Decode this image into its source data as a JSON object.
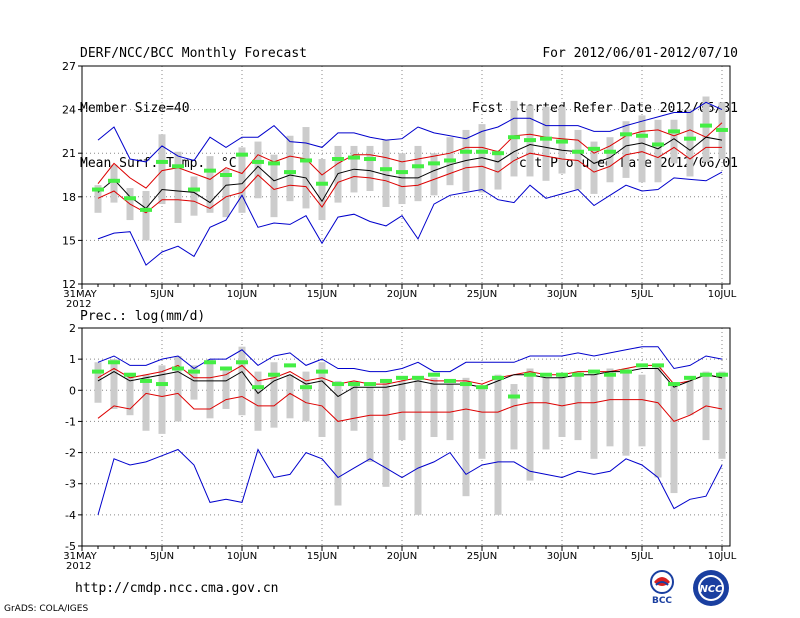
{
  "header": {
    "title": "DERF/NCC/BCC Monthly Forecast",
    "member": "Member Size=40",
    "variable": "Mean Surf. Temp.: °C",
    "period": "For 2012/06/01-2012/07/10",
    "started": "Fcst Started Refer Date 2012/05/31",
    "produced": "Fcst Produced Date 2012/06/01"
  },
  "footer": {
    "url": "http://cmdp.ncc.cma.gov.cn",
    "credit": "GrADS: COLA/IGES"
  },
  "logos": {
    "bcc": "BCC",
    "ncc": "NCC"
  },
  "colors": {
    "max_min": "#0000cc",
    "spread": "#dd0000",
    "mean": "#000000",
    "observed": "#44ee44",
    "box": "#cccccc",
    "grid": "#888888"
  },
  "chart_data": [
    {
      "type": "line",
      "title": "Mean Surf. Temp.: °C",
      "xlabel": "",
      "ylabel": "°C",
      "x_tick_labels": [
        "31MAY",
        "5JUN",
        "10JUN",
        "15JUN",
        "20JUN",
        "25JUN",
        "30JUN",
        "5JUL",
        "10JUL"
      ],
      "x_tick_days": [
        0,
        5,
        10,
        15,
        20,
        25,
        30,
        35,
        40
      ],
      "x_year_label": "2012",
      "ylim": [
        12,
        27
      ],
      "y_ticks": [
        12,
        15,
        18,
        21,
        24,
        27
      ],
      "grid": true,
      "days": [
        1,
        2,
        3,
        4,
        5,
        6,
        7,
        8,
        9,
        10,
        11,
        12,
        13,
        14,
        15,
        16,
        17,
        18,
        19,
        20,
        21,
        22,
        23,
        24,
        25,
        26,
        27,
        28,
        29,
        30,
        31,
        32,
        33,
        34,
        35,
        36,
        37,
        38,
        39,
        40
      ],
      "series": [
        {
          "name": "max",
          "values": [
            21.9,
            22.8,
            20.6,
            20.4,
            21.5,
            20.8,
            20.5,
            22.1,
            21.4,
            22.1,
            22.1,
            22.9,
            21.8,
            21.7,
            21.4,
            22.4,
            22.4,
            22.1,
            21.9,
            22.0,
            22.8,
            22.4,
            22.2,
            22.0,
            22.5,
            22.8,
            23.4,
            23.4,
            22.9,
            22.9,
            22.9,
            22.5,
            22.5,
            22.9,
            23.2,
            23.5,
            23.8,
            23.8,
            24.5,
            24.0
          ]
        },
        {
          "name": "upper",
          "values": [
            18.9,
            20.3,
            19.3,
            18.6,
            19.8,
            20.0,
            19.6,
            19.2,
            20.0,
            19.6,
            20.9,
            20.4,
            20.8,
            20.6,
            19.5,
            20.3,
            20.9,
            20.9,
            20.7,
            20.4,
            20.6,
            20.8,
            21.0,
            21.4,
            21.4,
            21.1,
            22.2,
            22.3,
            22.1,
            22.0,
            21.9,
            21.0,
            21.5,
            22.2,
            22.5,
            22.6,
            22.2,
            22.6,
            22.1,
            23.1
          ]
        },
        {
          "name": "mean",
          "values": [
            18.3,
            19.2,
            18.0,
            17.2,
            18.5,
            18.4,
            18.3,
            17.6,
            18.8,
            18.9,
            20.1,
            19.1,
            19.5,
            19.3,
            17.7,
            19.6,
            19.9,
            19.8,
            19.5,
            19.3,
            19.3,
            19.8,
            20.2,
            20.5,
            20.7,
            20.4,
            21.1,
            21.6,
            21.4,
            21.2,
            21.1,
            20.3,
            20.7,
            21.5,
            21.7,
            21.3,
            22.0,
            21.2,
            22.1,
            21.9
          ]
        },
        {
          "name": "lower",
          "values": [
            17.9,
            18.4,
            17.5,
            16.9,
            17.8,
            17.8,
            17.7,
            17.2,
            18.0,
            18.3,
            19.5,
            18.5,
            18.8,
            18.7,
            17.3,
            19.0,
            19.4,
            19.3,
            19.1,
            18.7,
            18.8,
            19.2,
            19.6,
            20.0,
            20.1,
            19.7,
            20.5,
            21.0,
            20.8,
            20.6,
            20.5,
            19.7,
            20.1,
            20.9,
            21.1,
            20.7,
            21.4,
            20.6,
            21.4,
            21.4
          ]
        },
        {
          "name": "min",
          "values": [
            15.1,
            15.5,
            15.6,
            13.3,
            14.2,
            14.6,
            13.9,
            15.9,
            16.4,
            18.1,
            15.9,
            16.2,
            16.1,
            16.7,
            14.8,
            16.6,
            16.8,
            16.3,
            16.0,
            16.7,
            15.1,
            17.5,
            18.1,
            18.3,
            18.5,
            17.8,
            17.6,
            18.8,
            17.9,
            18.2,
            18.5,
            17.4,
            18.1,
            18.8,
            18.4,
            18.5,
            19.3,
            19.2,
            19.1,
            19.7
          ]
        },
        {
          "name": "observed",
          "values": [
            18.5,
            19.1,
            17.9,
            17.1,
            20.4,
            20.1,
            18.5,
            19.8,
            19.5,
            20.9,
            20.4,
            20.3,
            19.7,
            20.5,
            18.9,
            20.6,
            20.7,
            20.6,
            19.9,
            19.7,
            20.1,
            20.3,
            20.5,
            21.1,
            21.1,
            21.0,
            22.1,
            21.9,
            22.0,
            21.8,
            21.1,
            21.3,
            21.1,
            22.3,
            22.2,
            21.6,
            22.5,
            22.0,
            22.9,
            22.6
          ]
        }
      ],
      "boxes": [
        [
          16.9,
          18.8
        ],
        [
          17.6,
          20.2
        ],
        [
          16.4,
          18.6
        ],
        [
          15.0,
          18.4
        ],
        [
          17.5,
          22.3
        ],
        [
          16.2,
          21.1
        ],
        [
          16.7,
          19.4
        ],
        [
          16.9,
          20.8
        ],
        [
          16.6,
          19.9
        ],
        [
          16.9,
          21.4
        ],
        [
          17.9,
          21.8
        ],
        [
          16.6,
          20.9
        ],
        [
          17.7,
          22.2
        ],
        [
          17.2,
          22.8
        ],
        [
          16.4,
          20.6
        ],
        [
          17.6,
          21.5
        ],
        [
          18.3,
          21.5
        ],
        [
          18.4,
          21.5
        ],
        [
          17.3,
          21.9
        ],
        [
          17.5,
          21.0
        ],
        [
          17.7,
          21.5
        ],
        [
          18.1,
          21.0
        ],
        [
          18.8,
          22.1
        ],
        [
          18.4,
          22.6
        ],
        [
          18.3,
          23.0
        ],
        [
          18.5,
          21.2
        ],
        [
          19.4,
          24.6
        ],
        [
          19.4,
          24.3
        ],
        [
          19.1,
          24.2
        ],
        [
          19.6,
          24.2
        ],
        [
          18.5,
          22.6
        ],
        [
          18.2,
          21.8
        ],
        [
          19.0,
          22.1
        ],
        [
          19.3,
          23.2
        ],
        [
          19.0,
          23.6
        ],
        [
          19.0,
          23.3
        ],
        [
          20.3,
          23.3
        ],
        [
          19.4,
          24.0
        ],
        [
          20.4,
          24.9
        ],
        [
          20.6,
          24.5
        ]
      ]
    },
    {
      "type": "line",
      "title": "Prec.: log(mm/d)",
      "xlabel": "",
      "ylabel": "log(mm/d)",
      "x_tick_labels": [
        "31MAY",
        "5JUN",
        "10JUN",
        "15JUN",
        "20JUN",
        "25JUN",
        "30JUN",
        "5JUL",
        "10JUL"
      ],
      "x_tick_days": [
        0,
        5,
        10,
        15,
        20,
        25,
        30,
        35,
        40
      ],
      "x_year_label": "2012",
      "ylim": [
        -5,
        2
      ],
      "y_ticks": [
        -5,
        -4,
        -3,
        -2,
        -1,
        0,
        1,
        2
      ],
      "grid": true,
      "days": [
        1,
        2,
        3,
        4,
        5,
        6,
        7,
        8,
        9,
        10,
        11,
        12,
        13,
        14,
        15,
        16,
        17,
        18,
        19,
        20,
        21,
        22,
        23,
        24,
        25,
        26,
        27,
        28,
        29,
        30,
        31,
        32,
        33,
        34,
        35,
        36,
        37,
        38,
        39,
        40
      ],
      "series": [
        {
          "name": "max",
          "values": [
            0.9,
            1.1,
            0.8,
            0.8,
            1.0,
            1.1,
            0.7,
            1.0,
            1.0,
            1.3,
            0.8,
            1.1,
            1.2,
            0.8,
            1.0,
            0.7,
            0.7,
            0.6,
            0.6,
            0.7,
            0.9,
            0.6,
            0.6,
            0.9,
            0.9,
            0.9,
            0.9,
            1.1,
            1.1,
            1.1,
            1.2,
            1.1,
            1.2,
            1.3,
            1.4,
            1.4,
            0.7,
            0.8,
            1.1,
            1.0
          ]
        },
        {
          "name": "upper",
          "values": [
            0.4,
            0.7,
            0.4,
            0.5,
            0.6,
            0.8,
            0.4,
            0.4,
            0.5,
            0.8,
            0.3,
            0.4,
            0.6,
            0.3,
            0.4,
            0.2,
            0.3,
            0.2,
            0.2,
            0.3,
            0.4,
            0.3,
            0.3,
            0.3,
            0.2,
            0.4,
            0.5,
            0.6,
            0.5,
            0.5,
            0.6,
            0.6,
            0.6,
            0.7,
            0.8,
            0.8,
            0.2,
            0.3,
            0.5,
            0.4
          ]
        },
        {
          "name": "mean",
          "values": [
            0.3,
            0.6,
            0.3,
            0.4,
            0.5,
            0.6,
            0.3,
            0.3,
            0.3,
            0.6,
            -0.1,
            0.3,
            0.5,
            0.2,
            0.3,
            -0.2,
            0.1,
            0.1,
            0.1,
            0.2,
            0.3,
            0.2,
            0.2,
            0.2,
            0.1,
            0.3,
            0.5,
            0.5,
            0.4,
            0.4,
            0.5,
            0.5,
            0.6,
            0.6,
            0.7,
            0.7,
            0.1,
            0.3,
            0.5,
            0.4
          ]
        },
        {
          "name": "lower",
          "values": [
            -0.9,
            -0.5,
            -0.6,
            -0.1,
            -0.2,
            -0.1,
            -0.6,
            -0.6,
            -0.3,
            -0.2,
            -0.5,
            -0.5,
            -0.1,
            -0.4,
            -0.5,
            -1.0,
            -0.9,
            -0.8,
            -0.8,
            -0.7,
            -0.7,
            -0.7,
            -0.7,
            -0.6,
            -0.7,
            -0.7,
            -0.5,
            -0.4,
            -0.4,
            -0.5,
            -0.4,
            -0.4,
            -0.3,
            -0.3,
            -0.3,
            -0.4,
            -1.0,
            -0.8,
            -0.5,
            -0.6
          ]
        },
        {
          "name": "min",
          "values": [
            -4.0,
            -2.2,
            -2.4,
            -2.3,
            -2.1,
            -1.9,
            -2.4,
            -3.6,
            -3.5,
            -3.6,
            -1.9,
            -2.8,
            -2.7,
            -2.0,
            -2.2,
            -2.8,
            -2.5,
            -2.2,
            -2.5,
            -2.8,
            -2.5,
            -2.3,
            -2.0,
            -2.7,
            -2.4,
            -2.3,
            -2.3,
            -2.6,
            -2.7,
            -2.8,
            -2.6,
            -2.7,
            -2.6,
            -2.2,
            -2.4,
            -2.8,
            -3.8,
            -3.5,
            -3.4,
            -2.4
          ]
        },
        {
          "name": "observed",
          "values": [
            0.6,
            0.9,
            0.5,
            0.3,
            0.2,
            0.7,
            0.6,
            0.9,
            0.7,
            0.9,
            0.1,
            0.5,
            0.8,
            0.1,
            0.6,
            0.2,
            0.2,
            0.2,
            0.3,
            0.4,
            0.4,
            0.5,
            0.3,
            0.2,
            0.1,
            0.4,
            -0.2,
            0.5,
            0.5,
            0.5,
            0.5,
            0.6,
            0.5,
            0.6,
            0.8,
            0.8,
            0.2,
            0.4,
            0.5,
            0.5
          ]
        }
      ],
      "boxes": [
        [
          -0.4,
          0.9
        ],
        [
          -0.6,
          1.0
        ],
        [
          -0.8,
          0.5
        ],
        [
          -1.3,
          0.5
        ],
        [
          -1.4,
          0.8
        ],
        [
          -1.0,
          1.1
        ],
        [
          -0.3,
          0.8
        ],
        [
          -0.9,
          1.0
        ],
        [
          -0.6,
          0.7
        ],
        [
          -0.8,
          1.4
        ],
        [
          -1.3,
          0.6
        ],
        [
          -1.2,
          0.9
        ],
        [
          -0.9,
          0.5
        ],
        [
          -1.0,
          0.6
        ],
        [
          -1.5,
          0.9
        ],
        [
          -3.7,
          0.3
        ],
        [
          -1.3,
          0.3
        ],
        [
          -2.3,
          0.1
        ],
        [
          -3.1,
          0.3
        ],
        [
          -1.6,
          0.3
        ],
        [
          -4.0,
          0.4
        ],
        [
          -1.5,
          0.4
        ],
        [
          -1.6,
          0.2
        ],
        [
          -3.4,
          0.4
        ],
        [
          -2.2,
          0.1
        ],
        [
          -4.0,
          0.5
        ],
        [
          -1.9,
          0.2
        ],
        [
          -2.9,
          0.7
        ],
        [
          -1.9,
          0.4
        ],
        [
          -1.5,
          0.5
        ],
        [
          -1.6,
          0.6
        ],
        [
          -2.2,
          0.5
        ],
        [
          -1.8,
          0.7
        ],
        [
          -2.1,
          0.7
        ],
        [
          -1.8,
          0.5
        ],
        [
          -2.8,
          0.8
        ],
        [
          -3.3,
          0.2
        ],
        [
          -0.8,
          0.3
        ],
        [
          -1.6,
          0.6
        ],
        [
          -2.2,
          0.6
        ]
      ]
    }
  ]
}
